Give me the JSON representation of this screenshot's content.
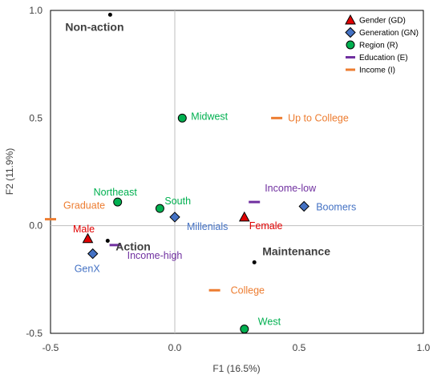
{
  "chart_data": {
    "type": "scatter",
    "xlabel": "F1 (16.5%)",
    "ylabel": "F2 (11.9%)",
    "xlim": [
      -0.5,
      1.0
    ],
    "ylim": [
      -0.5,
      1.0
    ],
    "x_ticks": [
      "-0.5",
      "0.0",
      "0.5",
      "1.0"
    ],
    "y_ticks": [
      "-0.5",
      "0.0",
      "0.5",
      "1.0"
    ],
    "grid": false,
    "legend_position": "top-right",
    "legend": [
      {
        "key": "gender",
        "label": "Gender (GD)",
        "marker": "triangle",
        "color": "#e00000"
      },
      {
        "key": "generation",
        "label": "Generation (GN)",
        "marker": "diamond",
        "color": "#4472c4"
      },
      {
        "key": "region",
        "label": "Region (R)",
        "marker": "circle",
        "color": "#00b050"
      },
      {
        "key": "education",
        "label": "Education (E)",
        "marker": "dash",
        "color": "#7030a0"
      },
      {
        "key": "income",
        "label": "Income (I)",
        "marker": "dash",
        "color": "#ed7d31"
      }
    ],
    "series": [
      {
        "key": "gender",
        "points": [
          {
            "label": "Female",
            "x": 0.28,
            "y": 0.04
          },
          {
            "label": "Male",
            "x": -0.35,
            "y": -0.06
          }
        ]
      },
      {
        "key": "generation",
        "points": [
          {
            "label": "Boomers",
            "x": 0.52,
            "y": 0.09
          },
          {
            "label": "Millenials",
            "x": 0.0,
            "y": 0.04
          },
          {
            "label": "GenX",
            "x": -0.33,
            "y": -0.13
          }
        ]
      },
      {
        "key": "region",
        "points": [
          {
            "label": "Midwest",
            "x": 0.03,
            "y": 0.5
          },
          {
            "label": "Northeast",
            "x": -0.23,
            "y": 0.11
          },
          {
            "label": "South",
            "x": -0.06,
            "y": 0.08
          },
          {
            "label": "West",
            "x": 0.28,
            "y": -0.48
          }
        ]
      },
      {
        "key": "education",
        "points": [
          {
            "label": "Income-low",
            "x": 0.32,
            "y": 0.11
          },
          {
            "label": "Income-high",
            "x": -0.24,
            "y": -0.09
          }
        ]
      },
      {
        "key": "income",
        "points": [
          {
            "label": "Up to College",
            "x": 0.41,
            "y": 0.5
          },
          {
            "label": "Graduate",
            "x": -0.5,
            "y": 0.03
          },
          {
            "label": "College",
            "x": 0.16,
            "y": -0.3
          }
        ]
      }
    ],
    "indicators": [
      {
        "label": "Non-action",
        "x": -0.26,
        "y": 0.98
      },
      {
        "label": "Action",
        "x": -0.27,
        "y": -0.07
      },
      {
        "label": "Maintenance",
        "x": 0.32,
        "y": -0.17
      }
    ]
  }
}
